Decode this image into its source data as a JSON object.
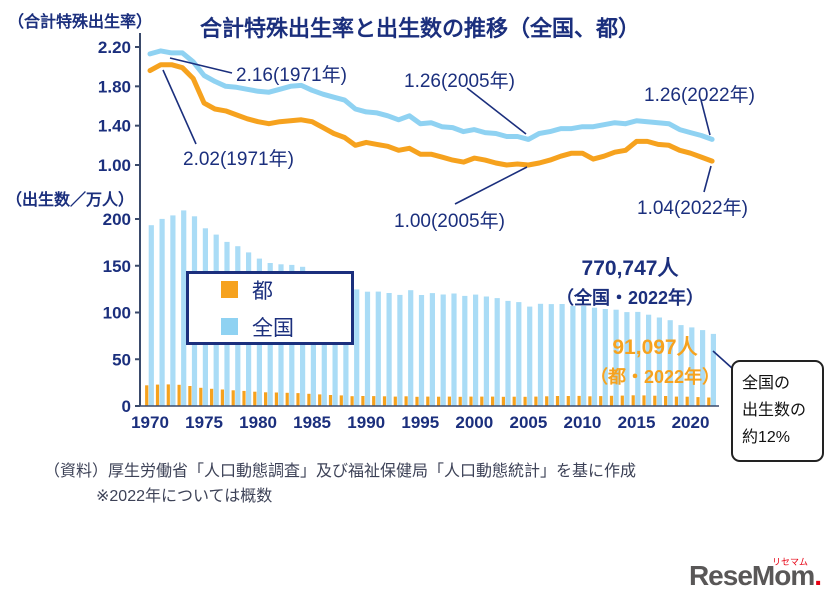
{
  "title": "合計特殊出生率と出生数の推移（全国、都）",
  "axes": {
    "rate_axis_label": "（合計特殊出生率）",
    "rate_ticks": [
      "2.20",
      "1.80",
      "1.40",
      "1.00"
    ],
    "births_axis_label": "（出生数／万人）",
    "births_ticks": [
      "200",
      "150",
      "100",
      "50",
      "0"
    ],
    "x_ticks": [
      "1970",
      "1975",
      "1980",
      "1985",
      "1990",
      "1995",
      "2000",
      "2005",
      "2010",
      "2015",
      "2020"
    ]
  },
  "legend": {
    "tokyo": "都",
    "national": "全国"
  },
  "annotations": {
    "national_1971": "2.16(1971年)",
    "tokyo_1971": "2.02(1971年)",
    "national_2005": "1.26(2005年)",
    "tokyo_2005": "1.00(2005年)",
    "national_2022": "1.26(2022年)",
    "tokyo_2022": "1.04(2022年)"
  },
  "stats": {
    "national_births": "770,747人",
    "national_caption": "（全国・2022年）",
    "tokyo_births": "91,097人",
    "tokyo_caption": "（都・2022年）"
  },
  "callout": {
    "line1": "全国の",
    "line2": "出生数の",
    "line3": "約12%"
  },
  "footer": {
    "source": "（資料）厚生労働省「人口動態調査」及び福祉保健局「人口動態統計」を基に作成",
    "note": "※2022年については概数"
  },
  "logo": {
    "text": "ReseMom",
    "ruby": "リセマム",
    "suffix": "."
  },
  "colors": {
    "navy": "#1b2f7d",
    "orange": "#f6a21e",
    "blue": "#8fd2f2",
    "bar_blue": "#aadcf6",
    "axis": "#3a4a6b",
    "text_dark": "#3d4257",
    "logo_gray": "#595757",
    "red": "#e60012"
  },
  "chart_data": {
    "type": "line+bar",
    "title": "合計特殊出生率と出生数の推移（全国、都）",
    "x": [
      1970,
      1971,
      1972,
      1973,
      1974,
      1975,
      1976,
      1977,
      1978,
      1979,
      1980,
      1981,
      1982,
      1983,
      1984,
      1985,
      1986,
      1987,
      1988,
      1989,
      1990,
      1991,
      1992,
      1993,
      1994,
      1995,
      1996,
      1997,
      1998,
      1999,
      2000,
      2001,
      2002,
      2003,
      2004,
      2005,
      2006,
      2007,
      2008,
      2009,
      2010,
      2011,
      2012,
      2013,
      2014,
      2015,
      2016,
      2017,
      2018,
      2019,
      2020,
      2021,
      2022
    ],
    "rate_axis": {
      "label": "合計特殊出生率",
      "range": [
        1.0,
        2.2
      ]
    },
    "births_axis": {
      "label": "出生数（万人）",
      "range": [
        0,
        200
      ]
    },
    "rate_tick_values": [
      2.2,
      1.8,
      1.4,
      1.0
    ],
    "births_tick_values": [
      200,
      150,
      100,
      50,
      0
    ],
    "legend_position": "middle-left",
    "grid": false,
    "series": [
      {
        "name": "全国（合計特殊出生率）",
        "type": "line",
        "color": "#8fd2f2",
        "values": [
          2.13,
          2.16,
          2.14,
          2.14,
          2.05,
          1.91,
          1.85,
          1.8,
          1.79,
          1.77,
          1.75,
          1.74,
          1.77,
          1.8,
          1.81,
          1.76,
          1.72,
          1.69,
          1.66,
          1.57,
          1.54,
          1.53,
          1.5,
          1.46,
          1.5,
          1.42,
          1.43,
          1.39,
          1.38,
          1.34,
          1.36,
          1.33,
          1.32,
          1.29,
          1.29,
          1.26,
          1.32,
          1.34,
          1.37,
          1.37,
          1.39,
          1.39,
          1.41,
          1.43,
          1.42,
          1.45,
          1.44,
          1.43,
          1.42,
          1.36,
          1.33,
          1.3,
          1.26
        ]
      },
      {
        "name": "都（合計特殊出生率）",
        "type": "line",
        "color": "#f6a21e",
        "values": [
          1.96,
          2.02,
          2.02,
          1.99,
          1.88,
          1.63,
          1.57,
          1.55,
          1.51,
          1.47,
          1.44,
          1.42,
          1.44,
          1.45,
          1.46,
          1.44,
          1.38,
          1.32,
          1.28,
          1.2,
          1.23,
          1.21,
          1.19,
          1.15,
          1.17,
          1.11,
          1.11,
          1.08,
          1.05,
          1.03,
          1.07,
          1.05,
          1.02,
          1.0,
          1.01,
          1.0,
          1.02,
          1.05,
          1.09,
          1.12,
          1.12,
          1.06,
          1.09,
          1.13,
          1.15,
          1.24,
          1.24,
          1.21,
          1.2,
          1.15,
          1.12,
          1.08,
          1.04
        ]
      },
      {
        "name": "全国（出生数・万人）",
        "type": "bar",
        "color": "#aadcf6",
        "values": [
          193.4,
          200.1,
          203.9,
          209.2,
          202.9,
          190.1,
          183.3,
          175.5,
          170.9,
          164.3,
          157.7,
          152.9,
          151.5,
          150.9,
          148.9,
          143.2,
          138.3,
          134.7,
          131.4,
          124.7,
          122.2,
          122.3,
          120.9,
          118.8,
          123.8,
          118.7,
          120.7,
          119.2,
          120.3,
          117.8,
          119.1,
          117.1,
          115.4,
          112.4,
          111.1,
          106.3,
          109.3,
          109.0,
          109.1,
          107.0,
          107.1,
          105.1,
          103.7,
          103.0,
          100.4,
          100.6,
          97.7,
          94.6,
          91.8,
          86.5,
          84.1,
          81.2,
          77.1
        ]
      },
      {
        "name": "都（出生数・万人）",
        "type": "bar",
        "color": "#f6a21e",
        "values": [
          22.1,
          22.9,
          23.1,
          22.7,
          21.4,
          19.5,
          18.4,
          17.6,
          16.8,
          16.1,
          15.3,
          14.6,
          14.4,
          14.1,
          13.8,
          13.1,
          12.4,
          11.8,
          11.3,
          10.5,
          10.7,
          10.6,
          10.4,
          10.1,
          10.4,
          9.8,
          10.0,
          9.9,
          10.0,
          9.8,
          10.1,
          10.1,
          10.0,
          9.8,
          9.9,
          9.8,
          10.1,
          10.4,
          10.7,
          10.7,
          10.8,
          10.4,
          10.6,
          10.9,
          11.1,
          11.4,
          11.3,
          11.0,
          10.7,
          10.1,
          9.9,
          9.5,
          9.1
        ]
      }
    ],
    "callout_note": "全国の出生数の約12%"
  }
}
